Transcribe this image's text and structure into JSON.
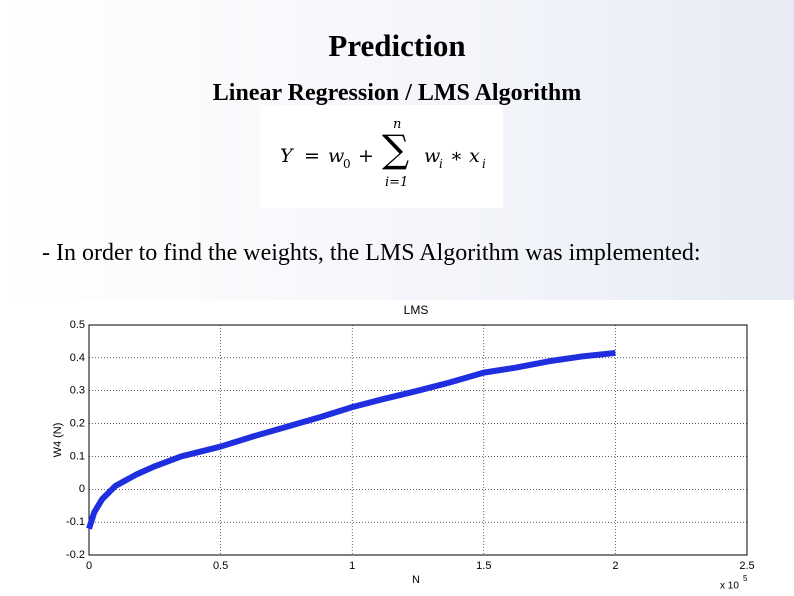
{
  "slide": {
    "title": "Prediction",
    "subtitle": "Linear Regression / LMS Algorithm",
    "formula": {
      "lhs": "Y",
      "eq": "=",
      "w0": "w",
      "w0_sub": "0",
      "plus": "+",
      "sigma": "∑",
      "sum_top": "n",
      "sum_bottom": "i=1",
      "wi": "w",
      "wi_sub": "i",
      "times": "∗ x",
      "xi_sub": "i"
    },
    "body": "- In order to find the weights, the LMS Algorithm was implemented:"
  },
  "chart_data": {
    "type": "line",
    "title": "LMS",
    "x_label": "N",
    "y_label": "W4 (N)",
    "x_multiplier": "x 10",
    "x_multiplier_exp": "5",
    "color": "#1f2fe0",
    "x": [
      0,
      0.02,
      0.05,
      0.1,
      0.18,
      0.25,
      0.35,
      0.5,
      0.62,
      0.75,
      0.88,
      1,
      1.12,
      1.25,
      1.37,
      1.5,
      1.62,
      1.75,
      1.88,
      2
    ],
    "values": [
      -0.12,
      -0.07,
      -0.03,
      0.01,
      0.045,
      0.07,
      0.1,
      0.13,
      0.16,
      0.19,
      0.22,
      0.25,
      0.275,
      0.3,
      0.325,
      0.355,
      0.37,
      0.39,
      0.405,
      0.415
    ],
    "xlim": [
      0,
      2.5
    ],
    "ylim": [
      -0.2,
      0.5
    ],
    "xticks": [
      0,
      0.5,
      1,
      1.5,
      2,
      2.5
    ],
    "yticks": [
      -0.2,
      -0.1,
      0,
      0.1,
      0.2,
      0.3,
      0.4,
      0.5
    ],
    "grid": true
  }
}
